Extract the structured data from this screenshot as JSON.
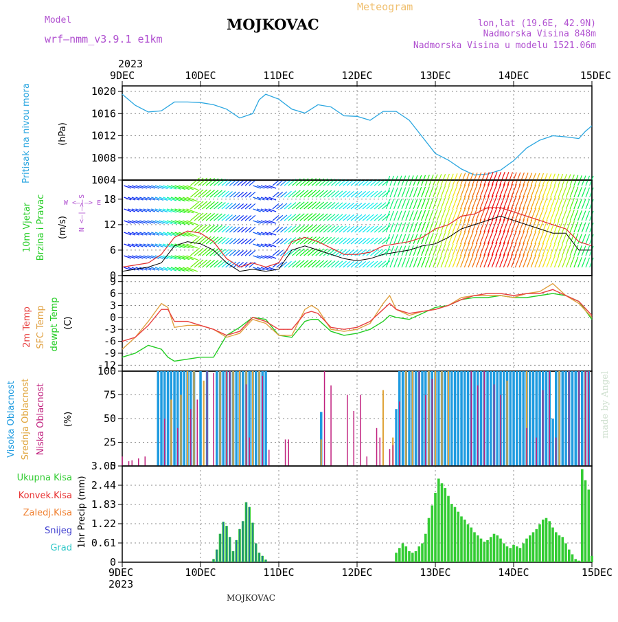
{
  "header": {
    "model_label": "Model",
    "model_name": "wrf—nmm_v3.9.1  e1km",
    "title": "MOJKOVAC",
    "meteogram": "Meteogram",
    "lonlat": "lon,lat (19.6E, 42.9N)",
    "altitude": "Nadmorska Visina 848m",
    "model_altitude": "Nadmorska Visina u modelu 1521.06m",
    "year_top": "2023",
    "year_bottom": "2023",
    "footer": "MOJKOVAC",
    "credit": "made by Angel"
  },
  "colors": {
    "pressure": "#2aa6e0",
    "wind_avg": "#000000",
    "wind_gust": "#e03030",
    "t2m": "#e84040",
    "tsfc": "#e0a040",
    "dewpt": "#22cc22",
    "high_cloud": "#1e9be0",
    "mid_cloud": "#e0a53c",
    "low_cloud": "#c0207e",
    "total_precip": "#33cc33",
    "conv_precip": "#1e6fa0",
    "model_label": "#b050d0",
    "meteogram": "#f0c070"
  },
  "axis_days": [
    "9DEC",
    "10DEC",
    "11DEC",
    "12DEC",
    "13DEC",
    "14DEC",
    "15DEC"
  ],
  "panels": {
    "pressure": {
      "ylabel_lines": [
        "Pritisak na nivou mora"
      ],
      "unit": "(hPa)",
      "ticks": [
        "1020",
        "1016",
        "1012",
        "1008",
        "1004"
      ],
      "tick_values": [
        1020,
        1016,
        1012,
        1008,
        1004
      ],
      "ylim": [
        1004,
        1021
      ]
    },
    "wind": {
      "ylabel_lines": [
        "10m Vjetar",
        "Brzina i Pravac"
      ],
      "unit": "(m/s)",
      "ticks": [
        "18",
        "12",
        "6",
        "0"
      ],
      "tick_values": [
        18,
        12,
        6,
        0
      ],
      "ylim": [
        0,
        22.5
      ],
      "compass_ns": "N <—|—> S",
      "compass_we": "W <—|—> E"
    },
    "temp": {
      "ylabel_lines": [
        "2m Temp",
        "SFC Temp",
        "dewpt Temp"
      ],
      "unit": "(C)",
      "ticks": [
        "9",
        "6",
        "3",
        "0",
        "-3",
        "-6",
        "-9",
        "-12"
      ],
      "tick_values": [
        9,
        6,
        3,
        0,
        -3,
        -6,
        -9,
        -12
      ],
      "ylim": [
        -13.5,
        10.5
      ]
    },
    "cloud": {
      "ylabel_lines": [
        "Visoka Oblacnost",
        "Srednja Oblacnost",
        "Niska Oblacnost"
      ],
      "unit": "(%)",
      "ticks": [
        "100",
        "75",
        "50",
        "25",
        "0"
      ],
      "tick_values": [
        100,
        75,
        50,
        25,
        0
      ],
      "ylim": [
        0,
        100
      ]
    },
    "precip": {
      "ylabel": "1hr Precip (mm)",
      "legend": [
        "Ukupna Kisa",
        "Konvek.Kisa",
        "Zaledj.Kisa",
        "Snijeg",
        "Grad"
      ],
      "legend_colors": [
        "#33cc33",
        "#e83030",
        "#f08030",
        "#4040d0",
        "#30c8c8"
      ],
      "ticks": [
        "3.05",
        "2.44",
        "1.83",
        "1.22",
        "0.61",
        "0"
      ],
      "tick_values": [
        3.05,
        2.44,
        1.83,
        1.22,
        0.61,
        0
      ],
      "ylim": [
        0,
        3.05
      ]
    }
  },
  "chart_data": [
    {
      "type": "line",
      "title": "Pritisak na nivou mora",
      "ylabel": "(hPa)",
      "x_unit": "hours since 9DEC 00",
      "x": [
        0,
        4,
        8,
        12,
        16,
        20,
        24,
        28,
        32,
        36,
        40,
        42,
        44,
        48,
        52,
        56,
        60,
        64,
        68,
        72,
        76,
        80,
        84,
        88,
        92,
        96,
        100,
        104,
        108,
        112,
        116,
        120,
        124,
        128,
        132,
        136,
        140,
        142,
        144
      ],
      "values": [
        1019.5,
        1017.5,
        1016.3,
        1016.5,
        1018.1,
        1018.1,
        1018,
        1017.6,
        1016.8,
        1015.2,
        1016,
        1018.5,
        1019.5,
        1018.6,
        1016.8,
        1016.1,
        1017.6,
        1017.2,
        1015.6,
        1015.5,
        1014.8,
        1016.4,
        1016.4,
        1014.8,
        1011.8,
        1008.8,
        1007.6,
        1006,
        1004.9,
        1005.1,
        1005.8,
        1007.5,
        1009.8,
        1011.2,
        1012,
        1011.8,
        1011.5,
        1012.8,
        1013.8
      ]
    },
    {
      "type": "line",
      "title": "10m Vjetar Brzina i Pravac",
      "ylabel": "(m/s)",
      "x_unit": "hours since 9DEC 00",
      "x": [
        0,
        4,
        8,
        12,
        16,
        20,
        24,
        28,
        32,
        36,
        40,
        44,
        48,
        52,
        56,
        60,
        64,
        68,
        72,
        76,
        80,
        84,
        88,
        92,
        96,
        100,
        104,
        108,
        112,
        116,
        120,
        124,
        128,
        132,
        136,
        140,
        144
      ],
      "series": [
        {
          "name": "avg",
          "values": [
            1,
            1.5,
            2,
            3,
            7,
            8,
            7.5,
            6,
            3,
            1,
            1.5,
            1,
            1.5,
            6,
            7,
            6,
            5,
            4,
            3.5,
            4,
            5,
            5.5,
            6,
            7,
            7.5,
            9,
            11,
            12,
            13,
            14,
            13,
            12,
            11,
            10,
            10,
            6,
            6
          ]
        },
        {
          "name": "gust",
          "values": [
            2,
            2.5,
            3,
            5,
            9,
            10.5,
            10,
            8,
            4,
            2,
            3,
            2,
            3,
            8,
            9,
            8,
            6.5,
            5,
            5,
            5.5,
            7,
            7.5,
            8,
            9,
            11,
            12,
            14,
            14.5,
            16,
            16,
            15,
            14,
            13,
            12,
            11,
            8,
            7
          ]
        }
      ]
    },
    {
      "type": "line",
      "title": "2m Temp / SFC Temp / dewpt Temp",
      "ylabel": "(C)",
      "x_unit": "hours since 9DEC 00",
      "x": [
        0,
        4,
        8,
        12,
        14,
        16,
        20,
        24,
        28,
        32,
        36,
        40,
        44,
        48,
        52,
        56,
        58,
        60,
        64,
        68,
        72,
        76,
        80,
        82,
        84,
        88,
        92,
        96,
        100,
        104,
        108,
        112,
        116,
        120,
        124,
        128,
        132,
        136,
        140,
        144
      ],
      "series": [
        {
          "name": "2m Temp",
          "values": [
            -6,
            -5,
            -2,
            2,
            2,
            -1,
            -1,
            -2,
            -3,
            -4.5,
            -3.5,
            0,
            -1,
            -3,
            -3,
            1,
            1.5,
            1,
            -2.5,
            -3,
            -2.5,
            -1,
            2,
            3.5,
            2,
            1,
            1.5,
            2,
            3,
            4.5,
            5.5,
            6,
            6,
            5.5,
            6,
            6,
            7,
            5.5,
            4,
            0.5
          ]
        },
        {
          "name": "SFC Temp",
          "values": [
            -8,
            -5,
            -1,
            3.5,
            2.5,
            -2.5,
            -2,
            -2,
            -3,
            -5,
            -4,
            -0.5,
            -1.5,
            -4.5,
            -4.5,
            2,
            3,
            2,
            -3,
            -3.5,
            -3,
            -1.5,
            3.5,
            5.5,
            2,
            0.5,
            1.5,
            2,
            3,
            5,
            5.5,
            5.5,
            5.5,
            5,
            6,
            6.5,
            8.5,
            5.5,
            3.5,
            0
          ]
        },
        {
          "name": "dewpt Temp",
          "values": [
            -10,
            -9,
            -7,
            -8,
            -10,
            -11,
            -10.5,
            -10,
            -10,
            -4.5,
            -2.5,
            0,
            -0.5,
            -4.5,
            -5,
            -1,
            -0.5,
            -0.5,
            -3.5,
            -4.5,
            -4,
            -3,
            -1,
            0.5,
            0,
            -0.5,
            1,
            2.5,
            3,
            4.5,
            5,
            5,
            5.5,
            5,
            5,
            5.5,
            6,
            5.5,
            4,
            -0.5
          ]
        }
      ]
    },
    {
      "type": "bar",
      "title": "Visoka / Srednja / Niska Oblacnost",
      "ylabel": "(%)",
      "x_unit": "hours since 9DEC 00",
      "series": [
        {
          "name": "Visoka Oblacnost",
          "x": [
            11,
            12,
            13,
            14,
            15,
            16,
            17,
            18,
            19,
            20,
            21,
            22,
            24,
            26,
            29,
            30,
            31,
            32,
            33,
            34,
            35,
            36,
            37,
            38,
            39,
            40,
            41,
            42,
            43,
            44,
            61,
            84,
            85,
            86,
            87,
            88,
            89,
            90,
            91,
            92,
            93,
            94,
            95,
            96,
            97,
            98,
            99,
            100,
            101,
            102,
            103,
            104,
            105,
            106,
            107,
            108,
            109,
            110,
            111,
            112,
            113,
            114,
            115,
            116,
            117,
            118,
            119,
            120,
            121,
            122,
            123,
            124,
            125,
            126,
            127,
            128,
            129,
            130,
            131,
            132,
            133,
            134,
            135,
            136,
            137,
            138,
            139,
            140,
            141,
            142,
            143
          ],
          "values": [
            100,
            100,
            100,
            100,
            100,
            100,
            100,
            100,
            100,
            100,
            100,
            100,
            100,
            100,
            100,
            100,
            100,
            100,
            100,
            100,
            100,
            100,
            100,
            100,
            100,
            100,
            100,
            100,
            100,
            100,
            57,
            60,
            100,
            100,
            100,
            100,
            100,
            100,
            100,
            100,
            100,
            100,
            100,
            100,
            100,
            100,
            100,
            100,
            100,
            100,
            100,
            100,
            100,
            100,
            100,
            100,
            100,
            100,
            100,
            100,
            100,
            100,
            100,
            100,
            100,
            100,
            100,
            100,
            100,
            100,
            100,
            100,
            100,
            100,
            100,
            100,
            100,
            100,
            100,
            50,
            100,
            100,
            100,
            100,
            100,
            100,
            100,
            100,
            100,
            100,
            100
          ]
        },
        {
          "name": "Srednja Oblacnost",
          "x": [
            15,
            18,
            20,
            22,
            25,
            30,
            32,
            34,
            36,
            38,
            40,
            42,
            61,
            80,
            83,
            87,
            89,
            94,
            96,
            98,
            100,
            118,
            124,
            134,
            142
          ],
          "values": [
            70,
            75,
            100,
            100,
            90,
            100,
            100,
            100,
            100,
            100,
            100,
            100,
            28,
            80,
            30,
            100,
            100,
            100,
            100,
            100,
            100,
            90,
            100,
            100,
            100
          ]
        },
        {
          "name": "Niska Oblacnost",
          "x": [
            0,
            2,
            3,
            5,
            7,
            13,
            17,
            21,
            23,
            26,
            28,
            32,
            33,
            38,
            39,
            43,
            45,
            50,
            51,
            62,
            64,
            69,
            71,
            73,
            75,
            78,
            79,
            82,
            83,
            85,
            91,
            93,
            95,
            107,
            109,
            111,
            114,
            116,
            124,
            127,
            129,
            131,
            133,
            137,
            140,
            142,
            143
          ],
          "values": [
            10,
            5,
            6,
            8,
            10,
            50,
            40,
            60,
            70,
            100,
            98,
            100,
            100,
            86,
            30,
            95,
            17,
            28,
            28,
            100,
            85,
            75,
            58,
            75,
            10,
            40,
            30,
            18,
            22,
            68,
            100,
            75,
            92,
            100,
            85,
            100,
            86,
            75,
            40,
            30,
            80,
            100,
            30,
            100,
            100,
            100,
            100
          ]
        }
      ]
    },
    {
      "type": "bar",
      "title": "1hr Precip",
      "ylabel": "1hr Precip (mm)",
      "x_unit": "hours since 9DEC 00",
      "series": [
        {
          "name": "Ukupna Kisa",
          "x": [
            28,
            29,
            30,
            31,
            32,
            33,
            34,
            35,
            36,
            37,
            38,
            39,
            40,
            41,
            42,
            43,
            44,
            84,
            85,
            86,
            87,
            88,
            89,
            90,
            91,
            92,
            93,
            94,
            95,
            96,
            97,
            98,
            99,
            100,
            101,
            102,
            103,
            104,
            105,
            106,
            107,
            108,
            109,
            110,
            111,
            112,
            113,
            114,
            115,
            116,
            117,
            118,
            119,
            120,
            121,
            122,
            123,
            124,
            125,
            126,
            127,
            128,
            129,
            130,
            131,
            132,
            133,
            134,
            135,
            136,
            137,
            138,
            139,
            140,
            141,
            142,
            143,
            144
          ],
          "values": [
            0.1,
            0.4,
            0.9,
            1.28,
            1.15,
            0.8,
            0.35,
            0.7,
            1.05,
            1.3,
            1.9,
            1.75,
            1.25,
            0.6,
            0.3,
            0.2,
            0.08,
            0.3,
            0.45,
            0.6,
            0.5,
            0.35,
            0.3,
            0.35,
            0.5,
            0.6,
            0.9,
            1.4,
            1.8,
            2.2,
            2.65,
            2.5,
            2.35,
            2.1,
            1.85,
            1.75,
            1.6,
            1.45,
            1.35,
            1.2,
            1.1,
            0.95,
            0.85,
            0.75,
            0.65,
            0.7,
            0.8,
            0.9,
            0.85,
            0.75,
            0.6,
            0.5,
            0.45,
            0.55,
            0.5,
            0.45,
            0.6,
            0.75,
            0.85,
            0.95,
            1.05,
            1.2,
            1.35,
            1.4,
            1.3,
            1.1,
            0.95,
            0.85,
            0.8,
            0.6,
            0.4,
            0.25,
            0.1,
            0.05,
            2.95,
            2.6,
            2.3,
            0.2
          ]
        },
        {
          "name": "Konvek.Kisa",
          "x": [],
          "values": []
        },
        {
          "name": "Zaledj.Kisa",
          "x": [],
          "values": []
        },
        {
          "name": "Snijeg",
          "x": [],
          "values": []
        },
        {
          "name": "Grad",
          "x": [],
          "values": []
        }
      ]
    }
  ]
}
